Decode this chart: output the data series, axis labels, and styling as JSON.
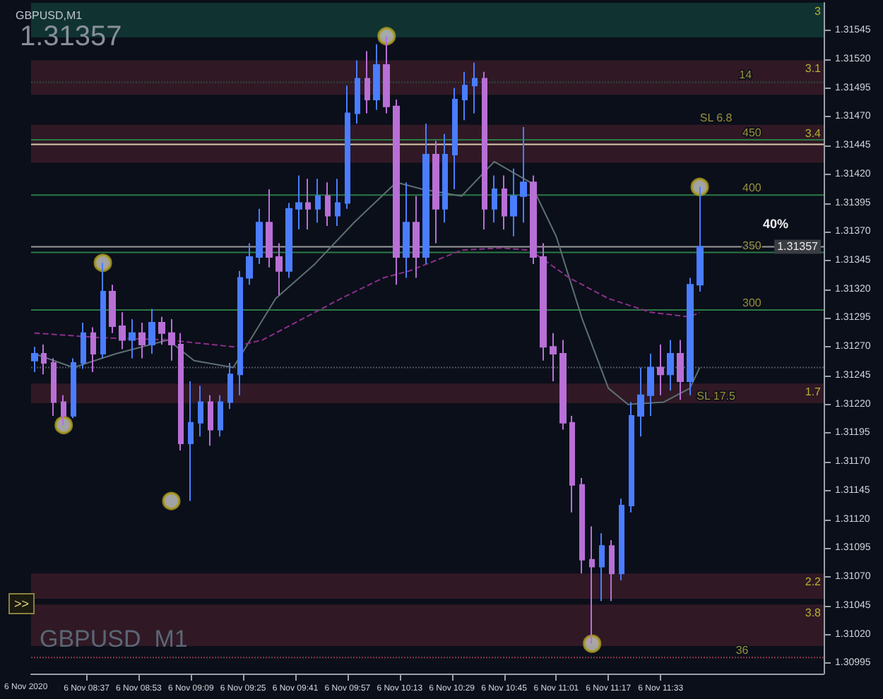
{
  "chart_data": {
    "type": "candlestick",
    "title": "GBPUSD,M1",
    "x": [
      "--11-06T08:21",
      "--11-06T08:24",
      "--11-06T08:27",
      "--11-06T08:30",
      "--11-06T08:33",
      "--11-06T08:36",
      "--11-06T08:39",
      "--11-06T08:42",
      "--11-06T08:45",
      "--11-06T08:48",
      "--11-06T08:51",
      "--11-06T08:54",
      "--11-06T08:57",
      "--11-06T09:00",
      "--11-06T09:03",
      "--11-06T09:06",
      "--11-06T09:09",
      "--11-06T09:12",
      "--11-06T09:15",
      "--11-06T09:18",
      "--11-06T09:21",
      "--11-06T09:24",
      "--11-06T09:27",
      "--11-06T09:30",
      "--11-06T09:33",
      "--11-06T09:36",
      "--11-06T09:39",
      "--11-06T09:42",
      "--11-06T09:45",
      "--11-06T09:48",
      "--11-06T09:51",
      "--11-06T09:54",
      "--11-06T09:57",
      "--11-06T10:00",
      "--11-06T10:03",
      "--11-06T10:06",
      "--11-06T10:09",
      "--11-06T10:12",
      "--11-06T10:15",
      "--11-06T10:18",
      "--11-06T10:21",
      "--11-06T10:24",
      "--11-06T10:27",
      "--11-06T10:30",
      "--11-06T10:33",
      "--11-06T10:36",
      "--11-06T10:39",
      "--11-06T10:42",
      "--11-06T10:45",
      "--11-06T10:48",
      "--11-06T10:51",
      "--11-06T10:54",
      "--11-06T10:57",
      "--11-06T11:00",
      "--11-06T11:03",
      "--11-06T11:06",
      "--11-06T11:09",
      "--11-06T11:12",
      "--11-06T11:15",
      "--11-06T11:18",
      "--11-06T11:21",
      "--11-06T11:24",
      "--11-06T11:27",
      "--11-06T11:30",
      "--11-06T11:33",
      "--11-06T11:36",
      "--11-06T11:39",
      "--11-06T11:42",
      "--11-06T11:45"
    ],
    "ohlc": [
      [
        1.31258,
        1.3127,
        1.31248,
        1.31264
      ],
      [
        1.31264,
        1.31272,
        1.31246,
        1.31256
      ],
      [
        1.31256,
        1.3126,
        1.3121,
        1.31222
      ],
      [
        1.31222,
        1.31228,
        1.31202,
        1.3121
      ],
      [
        1.3121,
        1.3126,
        1.31208,
        1.31256
      ],
      [
        1.31256,
        1.31291,
        1.31251,
        1.31282
      ],
      [
        1.31282,
        1.31287,
        1.31248,
        1.31264
      ],
      [
        1.31264,
        1.31343,
        1.3126,
        1.31318
      ],
      [
        1.31318,
        1.31324,
        1.31282,
        1.31288
      ],
      [
        1.31288,
        1.313,
        1.31268,
        1.31276
      ],
      [
        1.31276,
        1.31294,
        1.3126,
        1.31282
      ],
      [
        1.31282,
        1.31291,
        1.3126,
        1.31272
      ],
      [
        1.31272,
        1.31303,
        1.31264,
        1.31291
      ],
      [
        1.31291,
        1.31296,
        1.31272,
        1.31282
      ],
      [
        1.31282,
        1.31294,
        1.31258,
        1.31272
      ],
      [
        1.31272,
        1.31282,
        1.3118,
        1.31186
      ],
      [
        1.31186,
        1.3124,
        1.31136,
        1.31204
      ],
      [
        1.31204,
        1.31236,
        1.31192,
        1.31222
      ],
      [
        1.31222,
        1.31228,
        1.31184,
        1.31198
      ],
      [
        1.31198,
        1.31228,
        1.31192,
        1.31222
      ],
      [
        1.31222,
        1.31256,
        1.31216,
        1.31246
      ],
      [
        1.31246,
        1.31336,
        1.31228,
        1.3133
      ],
      [
        1.3133,
        1.3136,
        1.31324,
        1.31348
      ],
      [
        1.31348,
        1.3139,
        1.31342,
        1.31378
      ],
      [
        1.31378,
        1.31407,
        1.31339,
        1.31348
      ],
      [
        1.31348,
        1.3136,
        1.31315,
        1.31336
      ],
      [
        1.31336,
        1.31395,
        1.3133,
        1.3139
      ],
      [
        1.3139,
        1.31419,
        1.31372,
        1.31395
      ],
      [
        1.31395,
        1.31416,
        1.31372,
        1.3139
      ],
      [
        1.3139,
        1.31416,
        1.31378,
        1.31401
      ],
      [
        1.31401,
        1.31413,
        1.31375,
        1.31384
      ],
      [
        1.31384,
        1.31416,
        1.31375,
        1.31395
      ],
      [
        1.31395,
        1.31497,
        1.3139,
        1.31473
      ],
      [
        1.31473,
        1.31519,
        1.31464,
        1.31503
      ],
      [
        1.31503,
        1.31527,
        1.31473,
        1.31485
      ],
      [
        1.31485,
        1.31533,
        1.31476,
        1.31515
      ],
      [
        1.31515,
        1.3154,
        1.31473,
        1.31479
      ],
      [
        1.31479,
        1.31485,
        1.31324,
        1.31348
      ],
      [
        1.31348,
        1.31413,
        1.3133,
        1.31378
      ],
      [
        1.31378,
        1.31401,
        1.3133,
        1.31348
      ],
      [
        1.31348,
        1.31464,
        1.31342,
        1.31437
      ],
      [
        1.31437,
        1.31449,
        1.3136,
        1.3139
      ],
      [
        1.3139,
        1.31455,
        1.31378,
        1.31437
      ],
      [
        1.31437,
        1.31495,
        1.31407,
        1.31485
      ],
      [
        1.31485,
        1.31509,
        1.31467,
        1.31497
      ],
      [
        1.31497,
        1.31517,
        1.31473,
        1.31503
      ],
      [
        1.31503,
        1.31509,
        1.31372,
        1.3139
      ],
      [
        1.3139,
        1.31419,
        1.31378,
        1.31407
      ],
      [
        1.31407,
        1.31419,
        1.31372,
        1.31384
      ],
      [
        1.31384,
        1.31425,
        1.31366,
        1.31401
      ],
      [
        1.31401,
        1.31461,
        1.31378,
        1.31413
      ],
      [
        1.31413,
        1.31419,
        1.31342,
        1.31348
      ],
      [
        1.31348,
        1.3136,
        1.31258,
        1.3127
      ],
      [
        1.3127,
        1.31282,
        1.3124,
        1.31264
      ],
      [
        1.31264,
        1.31276,
        1.31198,
        1.31204
      ],
      [
        1.31204,
        1.3121,
        1.31126,
        1.3115
      ],
      [
        1.3115,
        1.31156,
        1.31073,
        1.31085
      ],
      [
        1.31085,
        1.31114,
        1.31012,
        1.31079
      ],
      [
        1.31079,
        1.31108,
        1.31049,
        1.31097
      ],
      [
        1.31097,
        1.31102,
        1.31049,
        1.31073
      ],
      [
        1.31073,
        1.31138,
        1.31067,
        1.31132
      ],
      [
        1.31132,
        1.31222,
        1.31126,
        1.3121
      ],
      [
        1.3121,
        1.31252,
        1.31192,
        1.31228
      ],
      [
        1.31228,
        1.31264,
        1.3121,
        1.31252
      ],
      [
        1.31252,
        1.31272,
        1.31228,
        1.31246
      ],
      [
        1.31246,
        1.31276,
        1.31232,
        1.31264
      ],
      [
        1.31264,
        1.31276,
        1.31224,
        1.3124
      ],
      [
        1.3124,
        1.3133,
        1.31228,
        1.31324
      ],
      [
        1.31324,
        1.31409,
        1.31318,
        1.31357
      ]
    ],
    "colors": [
      "#4a7dff",
      "#b86fd6",
      "#b86fd6",
      "#b86fd6",
      "#4a7dff",
      "#4a7dff",
      "#b86fd6",
      "#4a7dff",
      "#b86fd6",
      "#b86fd6",
      "#4a7dff",
      "#b86fd6",
      "#4a7dff",
      "#b86fd6",
      "#b86fd6",
      "#b86fd6",
      "#4a7dff",
      "#4a7dff",
      "#b86fd6",
      "#4a7dff",
      "#4a7dff",
      "#4a7dff",
      "#4a7dff",
      "#4a7dff",
      "#b86fd6",
      "#b86fd6",
      "#4a7dff",
      "#4a7dff",
      "#b86fd6",
      "#4a7dff",
      "#b86fd6",
      "#4a7dff",
      "#4a7dff",
      "#4a7dff",
      "#b86fd6",
      "#4a7dff",
      "#b86fd6",
      "#b86fd6",
      "#4a7dff",
      "#b86fd6",
      "#4a7dff",
      "#b86fd6",
      "#4a7dff",
      "#4a7dff",
      "#4a7dff",
      "#4a7dff",
      "#b86fd6",
      "#4a7dff",
      "#b86fd6",
      "#4a7dff",
      "#4a7dff",
      "#b86fd6",
      "#b86fd6",
      "#b86fd6",
      "#b86fd6",
      "#b86fd6",
      "#b86fd6",
      "#b86fd6",
      "#4a7dff",
      "#b86fd6",
      "#4a7dff",
      "#4a7dff",
      "#4a7dff",
      "#4a7dff",
      "#b86fd6",
      "#4a7dff",
      "#b86fd6",
      "#4a7dff",
      "#4a7dff"
    ],
    "series": [
      {
        "type": "line",
        "color": "#5d6f72",
        "marker": "none",
        "line_style": "solid",
        "x": [
          "--11-06T08:21",
          "--11-06T08:33",
          "--11-06T08:46",
          "--11-06T09:02",
          "--11-06T09:10",
          "--11-06T09:22",
          "--11-06T09:35",
          "--11-06T09:47",
          "--11-06T09:59",
          "--11-06T10:12",
          "--11-06T10:20",
          "--11-06T10:32",
          "--11-06T10:42",
          "--11-06T10:53",
          "--11-06T11:01",
          "--11-06T11:09",
          "--11-06T11:17",
          "--11-06T11:23",
          "--11-06T11:34",
          "--11-06T11:42",
          "--11-06T11:45"
        ],
        "values": [
          1.31264,
          1.31252,
          1.31264,
          1.31276,
          1.31258,
          1.31252,
          1.31312,
          1.31342,
          1.31378,
          1.31413,
          1.31407,
          1.31401,
          1.31431,
          1.31413,
          1.31366,
          1.31294,
          1.31234,
          1.3122,
          1.31222,
          1.31234,
          1.31252
        ]
      },
      {
        "type": "line",
        "color": "#8e2f8a",
        "marker": "none",
        "line_style": "dashed",
        "x": [
          "--11-06T08:21",
          "--11-06T08:41",
          "--11-06T09:02",
          "--11-06T09:22",
          "--11-06T09:31",
          "--11-06T09:43",
          "--11-06T09:55",
          "--11-06T10:08",
          "--11-06T10:16",
          "--11-06T10:32",
          "--11-06T10:44",
          "--11-06T10:53",
          "--11-06T11:05",
          "--11-06T11:17",
          "--11-06T11:30",
          "--11-06T11:42",
          "--11-06T11:45"
        ],
        "values": [
          1.31282,
          1.31278,
          1.31276,
          1.3127,
          1.31276,
          1.31294,
          1.31312,
          1.3133,
          1.31336,
          1.31354,
          1.31356,
          1.31354,
          1.3133,
          1.31312,
          1.313,
          1.31296,
          1.313
        ]
      },
      {
        "type": "scatter",
        "color": "#c8c8c8",
        "marker": "circle",
        "x": [
          "--11-06T08:30",
          "--11-06T08:42",
          "--11-06T09:03",
          "--11-06T10:09",
          "--11-06T11:12",
          "--11-06T11:45"
        ],
        "values": [
          1.31202,
          1.31343,
          1.31136,
          1.3154,
          1.31012,
          1.31409
        ]
      }
    ],
    "xlim": [
      "--11-06T08:20",
      "--11-06T12:23"
    ],
    "xticks": [
      {
        "value": "--11-06T08:37",
        "label": "6 Nov 08:37"
      },
      {
        "value": "--11-06T08:53",
        "label": "6 Nov 08:53"
      },
      {
        "value": "--11-06T09:09",
        "label": "6 Nov 09:09"
      },
      {
        "value": "--11-06T09:25",
        "label": "6 Nov 09:25"
      },
      {
        "value": "--11-06T09:41",
        "label": "6 Nov 09:41"
      },
      {
        "value": "--11-06T09:57",
        "label": "6 Nov 09:57"
      },
      {
        "value": "--11-06T10:13",
        "label": "6 Nov 10:13"
      },
      {
        "value": "--11-06T10:29",
        "label": "6 Nov 10:29"
      },
      {
        "value": "--11-06T10:45",
        "label": "6 Nov 10:45"
      },
      {
        "value": "--11-06T11:01",
        "label": "6 Nov 11:01"
      },
      {
        "value": "--11-06T11:17",
        "label": "6 Nov 11:17"
      },
      {
        "value": "--11-06T11:33",
        "label": "6 Nov 11:33"
      }
    ],
    "ylim": [
      1.30986,
      1.31569
    ],
    "yticks": [
      1.30995,
      {
        "value": 1.3102,
        "label": "1.31020"
      },
      1.31045,
      {
        "value": 1.3107,
        "label": "1.31070"
      },
      1.31095,
      {
        "value": 1.3112,
        "label": "1.31120"
      },
      1.31145,
      {
        "value": 1.3117,
        "label": "1.31170"
      },
      1.31195,
      {
        "value": 1.3122,
        "label": "1.31220"
      },
      1.31245,
      {
        "value": 1.3127,
        "label": "1.31270"
      },
      1.31295,
      {
        "value": 1.3132,
        "label": "1.31320"
      },
      1.31345,
      {
        "value": 1.3137,
        "label": "1.31370"
      },
      1.31395,
      {
        "value": 1.3142,
        "label": "1.31420"
      },
      1.31445,
      {
        "value": 1.3147,
        "label": "1.31470"
      },
      1.31495,
      {
        "value": 1.3152,
        "label": "1.31520"
      },
      1.31545
    ],
    "grid": false,
    "ref_lines": [
      {
        "axis": "y",
        "value": 1.31446,
        "label": null,
        "color": "#d8cbb0",
        "line_style": "solid"
      },
      {
        "axis": "y",
        "value": 1.31357,
        "label": "1.31357",
        "color": "#9a9a9a",
        "line_style": "solid"
      },
      {
        "axis": "y",
        "value": 1.315,
        "label": null,
        "color": "#2f4a3a",
        "line_style": "dotted"
      },
      {
        "axis": "y",
        "value": 1.31252,
        "label": null,
        "color": "#4e5560",
        "line_style": "dotted"
      },
      {
        "axis": "y",
        "value": 1.31,
        "label": null,
        "color": "#8a3a48",
        "line_style": "dotted"
      },
      {
        "axis": "y",
        "value": 1.3145,
        "label": null,
        "color": "#2a7a44",
        "line_style": "solid"
      },
      {
        "axis": "y",
        "value": 1.31402,
        "label": null,
        "color": "#2a7a44",
        "line_style": "solid"
      },
      {
        "axis": "y",
        "value": 1.31352,
        "label": null,
        "color": "#2a7a44",
        "line_style": "solid"
      },
      {
        "axis": "y",
        "value": 1.31302,
        "label": null,
        "color": "#2a7a44",
        "line_style": "solid"
      }
    ],
    "bands": [
      {
        "axis": "y",
        "from": 1.31539,
        "to": 1.31569,
        "label": "3",
        "color": "#123c38"
      },
      {
        "axis": "y",
        "from": 1.31489,
        "to": 1.31519,
        "label": "3.1",
        "color": "#3a1c28"
      },
      {
        "axis": "y",
        "from": 1.3143,
        "to": 1.31463,
        "label": "3.4",
        "color": "#3a1c28"
      },
      {
        "axis": "y",
        "from": 1.31221,
        "to": 1.31238,
        "label": "1.7",
        "color": "#3a1c28"
      },
      {
        "axis": "y",
        "from": 1.31051,
        "to": 1.31073,
        "label": "2.2",
        "color": "#3a1c28"
      },
      {
        "axis": "y",
        "from": 1.3101,
        "to": 1.31046,
        "label": "3.8",
        "color": "#3a1c28"
      }
    ],
    "annotations": [
      "1.31357",
      "GBPUSD  M1",
      ">>",
      "40%",
      "6 Nov 2020",
      {
        "text": "14",
        "x": "--11-06T11:59",
        "y": 1.315
      },
      {
        "text": "SL 6.8",
        "x": "--11-06T11:50",
        "y": 1.31463
      },
      {
        "text": "SL 17.5",
        "x": "--11-06T11:50",
        "y": 1.31221
      },
      {
        "text": "450",
        "x": "--11-06T12:01",
        "y": 1.3145
      },
      {
        "text": "400",
        "x": "--11-06T12:01",
        "y": 1.31402
      },
      {
        "text": "350",
        "x": "--11-06T12:01",
        "y": 1.31352
      },
      {
        "text": "300",
        "x": "--11-06T12:01",
        "y": 1.31302
      },
      {
        "text": "36",
        "x": "--11-06T11:58",
        "y": 1.31
      }
    ]
  }
}
